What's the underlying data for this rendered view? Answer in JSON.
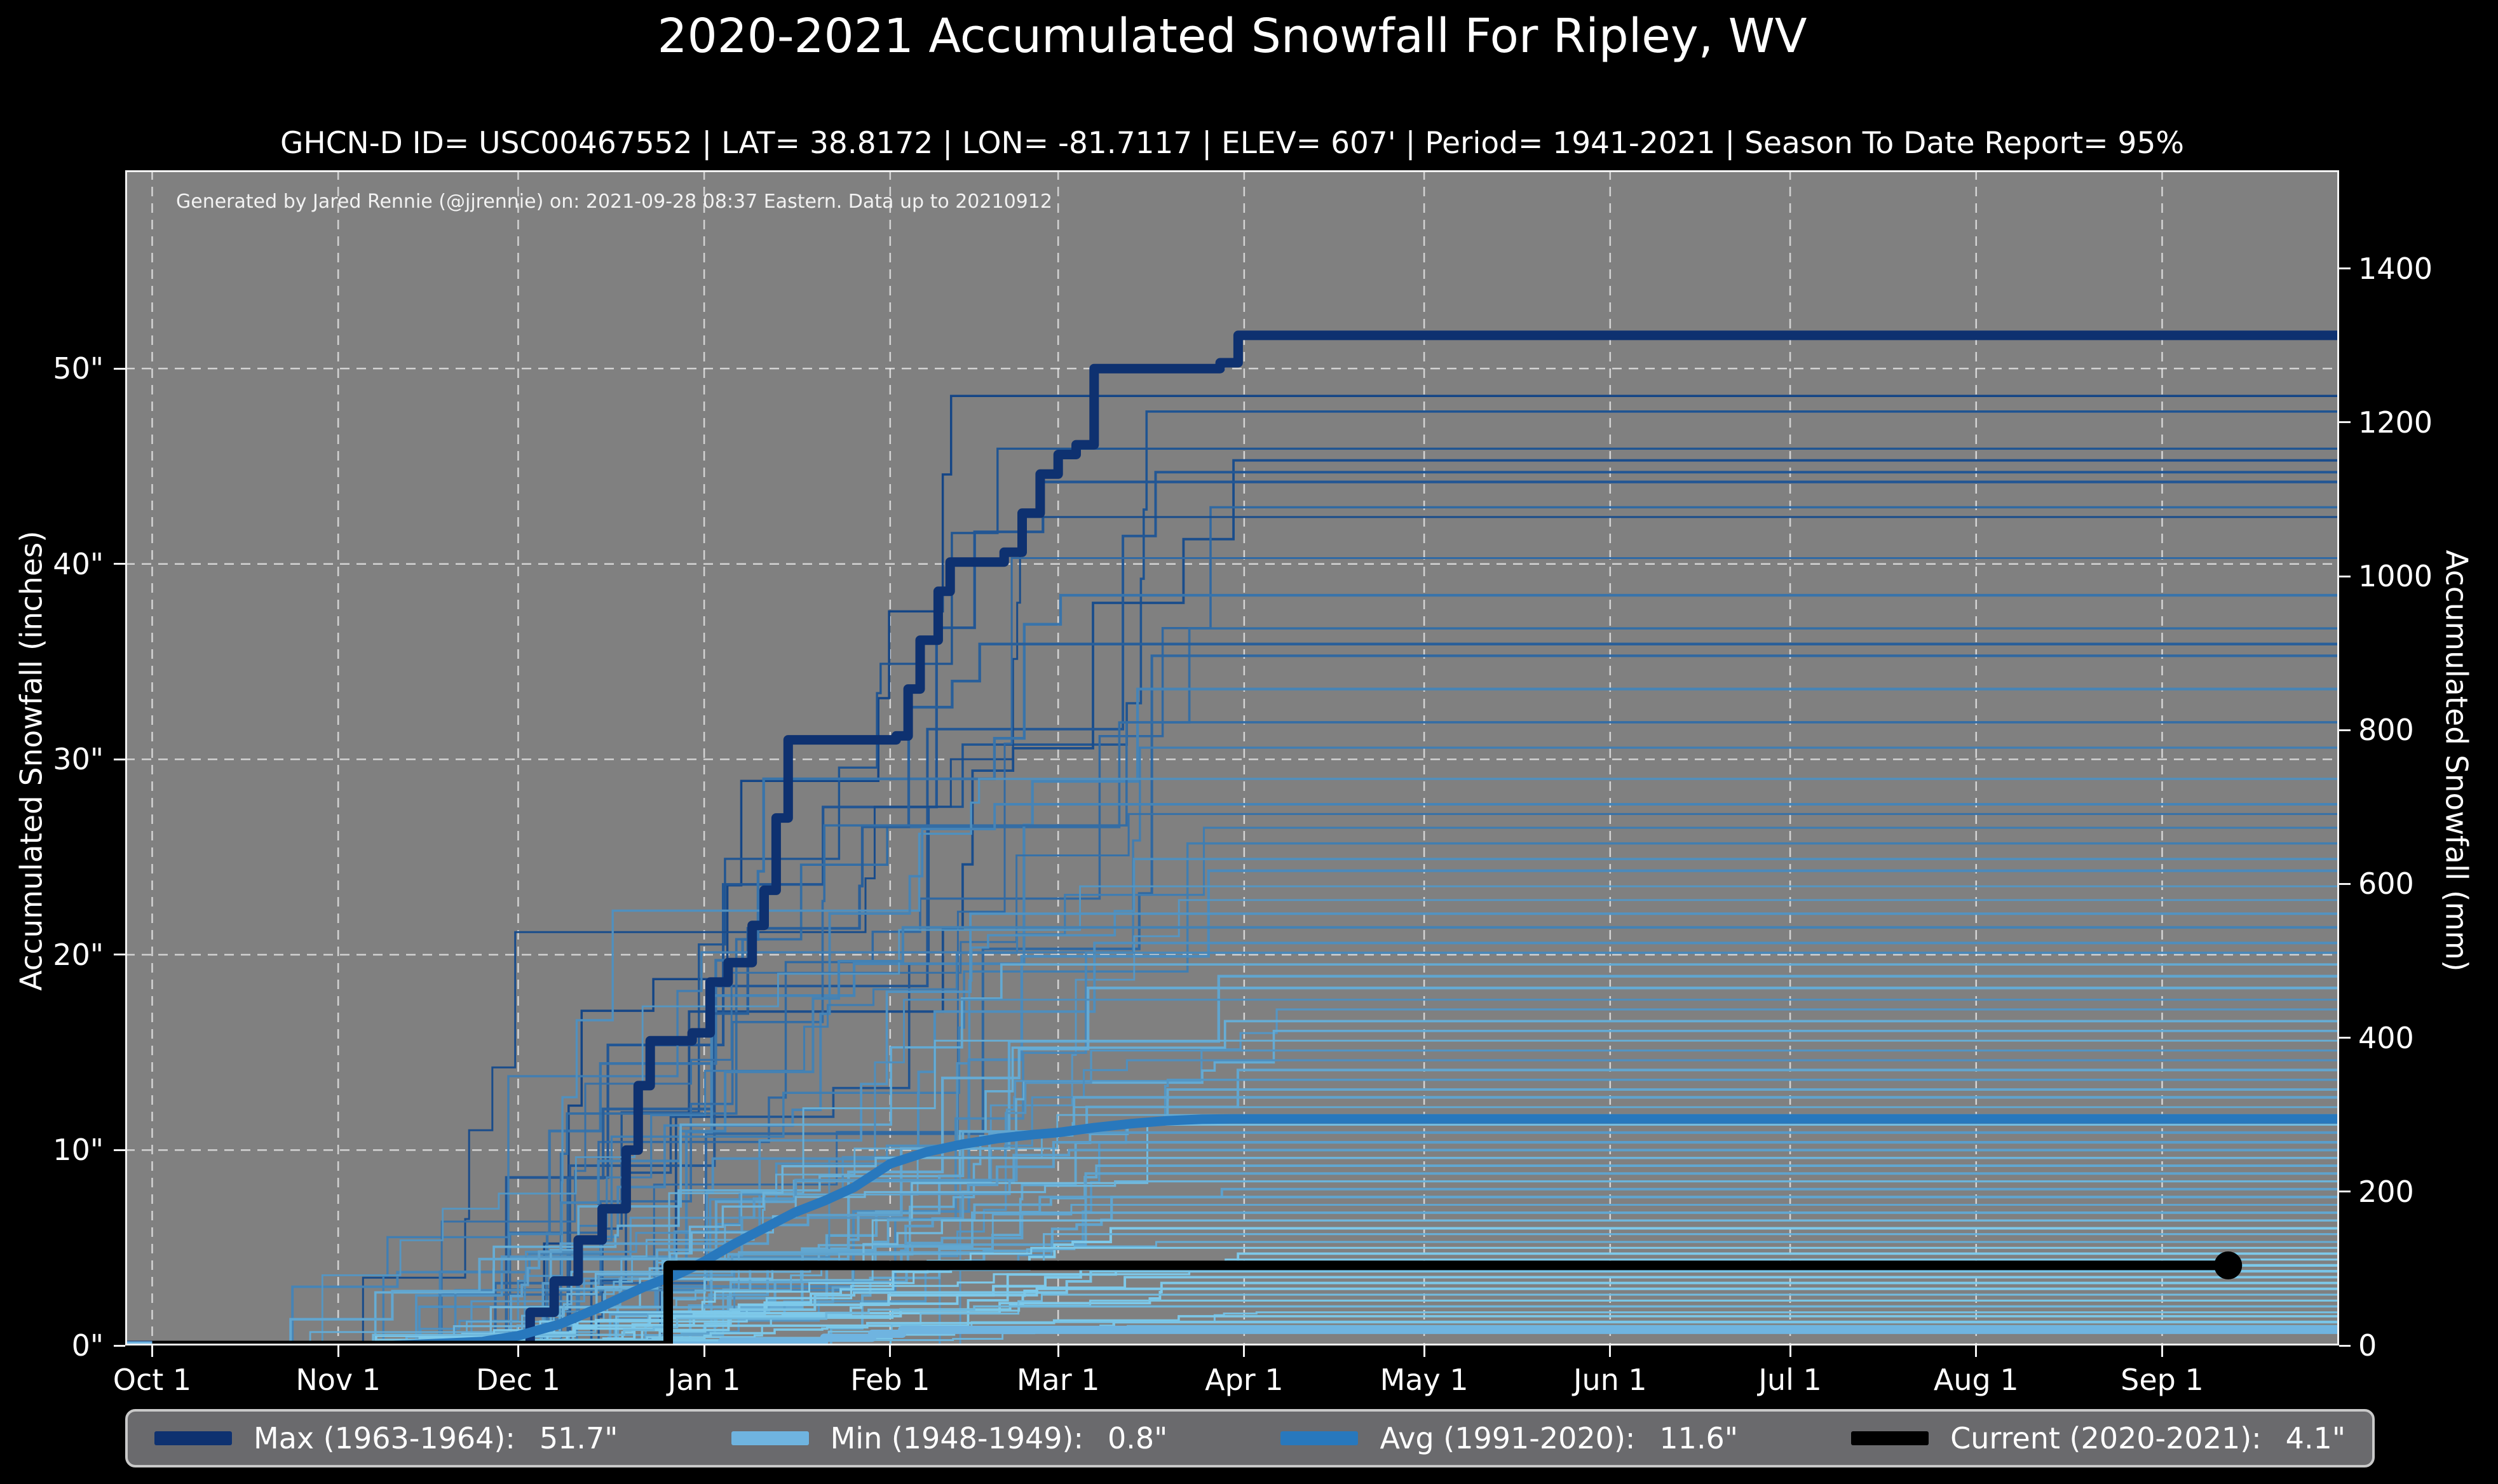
{
  "header": {
    "title": "2020-2021 Accumulated Snowfall For Ripley, WV",
    "subtitle": "GHCN-D ID= USC00467552 | LAT= 38.8172 | LON= -81.7117 | ELEV= 607' | Period= 1941-2021 | Season To Date Report= 95%"
  },
  "plot": {
    "attribution": "Generated by Jared Rennie (@jjrennie) on: 2021-09-28 08:37 Eastern. Data up to 20210912",
    "colors": {
      "figure_bg": "#000000",
      "plot_bg": "#808080",
      "grid": "rgba(255,255,255,0.65)",
      "spine": "#f2f2f2",
      "text": "#ffffff",
      "legend_bg": "#6a6a6d",
      "legend_border": "#c9c9c9"
    }
  },
  "legend": {
    "items": [
      {
        "key": "max",
        "label": "Max (1963-1964):",
        "value": "51.7\"",
        "color": "#0e3170"
      },
      {
        "key": "min",
        "label": "Min (1948-1949):",
        "value": "0.8\"",
        "color": "#6fb4e0"
      },
      {
        "key": "avg",
        "label": "Avg (1991-2020):",
        "value": "11.6\"",
        "color": "#2878bd"
      },
      {
        "key": "current",
        "label": "Current (2020-2021):",
        "value": "4.1\"",
        "color": "#000000"
      }
    ]
  },
  "chart_data": {
    "type": "line",
    "title": "2020-2021 Accumulated Snowfall For Ripley, WV",
    "grid": "dashed",
    "x_axis": {
      "unit": "day-of-season (Oct 1 = 0)",
      "domain_days": [
        -4.5,
        364.5
      ],
      "ticks": [
        {
          "day": 0,
          "label": "Oct 1"
        },
        {
          "day": 31,
          "label": "Nov 1"
        },
        {
          "day": 61,
          "label": "Dec 1"
        },
        {
          "day": 92,
          "label": "Jan 1"
        },
        {
          "day": 123,
          "label": "Feb 1"
        },
        {
          "day": 151,
          "label": "Mar 1"
        },
        {
          "day": 182,
          "label": "Apr 1"
        },
        {
          "day": 212,
          "label": "May 1"
        },
        {
          "day": 243,
          "label": "Jun 1"
        },
        {
          "day": 273,
          "label": "Jul 1"
        },
        {
          "day": 304,
          "label": "Aug 1"
        },
        {
          "day": 335,
          "label": "Sep 1"
        }
      ]
    },
    "y_left": {
      "label": "Accumulated Snowfall (inches)",
      "range": [
        0,
        60.15
      ],
      "gridline_values": [
        10,
        20,
        30,
        40,
        50
      ],
      "ticks": [
        {
          "value": 0,
          "label": "0\""
        },
        {
          "value": 10,
          "label": "10\""
        },
        {
          "value": 20,
          "label": "20\""
        },
        {
          "value": 30,
          "label": "30\""
        },
        {
          "value": 40,
          "label": "40\""
        },
        {
          "value": 50,
          "label": "50\""
        }
      ]
    },
    "y_right": {
      "label": "Accumulated Snowfall (mm)",
      "range": [
        0,
        1528
      ],
      "ticks": [
        {
          "value": 0,
          "label": "0"
        },
        {
          "value": 200,
          "label": "200"
        },
        {
          "value": 400,
          "label": "400"
        },
        {
          "value": 600,
          "label": "600"
        },
        {
          "value": 800,
          "label": "800"
        },
        {
          "value": 1000,
          "label": "1000"
        },
        {
          "value": 1200,
          "label": "1200"
        },
        {
          "value": 1400,
          "label": "1400"
        }
      ]
    },
    "series": [
      {
        "key": "max",
        "name": "Max (1963-1964)",
        "final_total_in": 51.7,
        "color": "#0e3170",
        "width": 15,
        "step": true,
        "end_dot": false,
        "points": [
          [
            -4.5,
            0
          ],
          [
            61,
            0
          ],
          [
            63,
            1.7
          ],
          [
            67,
            3.3
          ],
          [
            71,
            5.4
          ],
          [
            75,
            7.0
          ],
          [
            79,
            10.0
          ],
          [
            81,
            13.3
          ],
          [
            83,
            15.6
          ],
          [
            90,
            16.0
          ],
          [
            93,
            18.6
          ],
          [
            96,
            19.6
          ],
          [
            100,
            21.5
          ],
          [
            102,
            23.3
          ],
          [
            104,
            27.0
          ],
          [
            106,
            31.0
          ],
          [
            124,
            31.2
          ],
          [
            126,
            33.6
          ],
          [
            128,
            36.1
          ],
          [
            131,
            38.6
          ],
          [
            133,
            40.1
          ],
          [
            142,
            40.6
          ],
          [
            145,
            42.6
          ],
          [
            148,
            44.6
          ],
          [
            151,
            45.6
          ],
          [
            154,
            46.1
          ],
          [
            157,
            50.0
          ],
          [
            178,
            50.3
          ],
          [
            181,
            51.7
          ],
          [
            364.5,
            51.7
          ]
        ]
      },
      {
        "key": "min",
        "name": "Min (1948-1949)",
        "final_total_in": 0.8,
        "color": "#6fb4e0",
        "width": 13,
        "step": true,
        "end_dot": false,
        "points": [
          [
            -4.5,
            0
          ],
          [
            95,
            0.2
          ],
          [
            112,
            0.4
          ],
          [
            120,
            0.6
          ],
          [
            125,
            0.8
          ],
          [
            364.5,
            0.8
          ]
        ]
      },
      {
        "key": "avg",
        "name": "Avg (1991-2020)",
        "final_total_in": 11.6,
        "color": "#2878bd",
        "width": 15,
        "step": false,
        "end_dot": false,
        "points": [
          [
            40,
            0
          ],
          [
            55,
            0.2
          ],
          [
            61,
            0.5
          ],
          [
            68,
            1.1
          ],
          [
            75,
            2.0
          ],
          [
            82,
            3.0
          ],
          [
            88,
            3.7
          ],
          [
            92,
            4.3
          ],
          [
            97,
            5.2
          ],
          [
            102,
            6.0
          ],
          [
            107,
            6.8
          ],
          [
            112,
            7.4
          ],
          [
            117,
            8.1
          ],
          [
            123,
            9.3
          ],
          [
            129,
            9.9
          ],
          [
            135,
            10.3
          ],
          [
            141,
            10.6
          ],
          [
            147,
            10.8
          ],
          [
            151,
            10.9
          ],
          [
            157,
            11.15
          ],
          [
            163,
            11.35
          ],
          [
            169,
            11.5
          ],
          [
            175,
            11.58
          ],
          [
            180,
            11.6
          ],
          [
            364.5,
            11.6
          ]
        ]
      },
      {
        "key": "current",
        "name": "Current (2020-2021)",
        "final_total_in": 4.1,
        "color": "#000000",
        "width": 15,
        "step": true,
        "end_dot": true,
        "end_day": 346,
        "points": [
          [
            0,
            0
          ],
          [
            85,
            0
          ],
          [
            86,
            4.1
          ],
          [
            346,
            4.1
          ]
        ]
      }
    ],
    "background_years": {
      "description": "Thin lines: one accumulated-snowfall trace per season 1941-2021 (approximate end-of-season totals, inches)",
      "count": 76,
      "seed": 11,
      "color_low": "#7dc9ea",
      "color_high": "#0f3f82",
      "width_min": 2.8,
      "width_max": 4.4,
      "end_values": [
        48.6,
        47.8,
        45.9,
        45.3,
        44.7,
        44.2,
        42.9,
        42.4,
        40.3,
        38.4,
        36.7,
        35.9,
        35.3,
        33.6,
        31.9,
        30.6,
        29.0,
        27.7,
        27.2,
        26.5,
        25.7,
        24.9,
        24.3,
        23.5,
        22.8,
        22.1,
        21.4,
        20.6,
        20.1,
        19.5,
        18.9,
        18.3,
        17.7,
        17.2,
        16.6,
        16.1,
        15.6,
        15.1,
        14.6,
        14.1,
        13.6,
        13.1,
        12.7,
        12.2,
        11.8,
        11.3,
        10.9,
        10.4,
        10.0,
        9.6,
        9.2,
        8.8,
        8.4,
        8.0,
        7.6,
        7.2,
        6.8,
        6.4,
        6.0,
        5.7,
        5.3,
        5.0,
        4.7,
        4.4,
        4.1,
        3.8,
        3.5,
        3.2,
        2.9,
        2.6,
        2.3,
        2.0,
        1.7,
        1.5,
        1.2,
        1.0
      ]
    }
  }
}
